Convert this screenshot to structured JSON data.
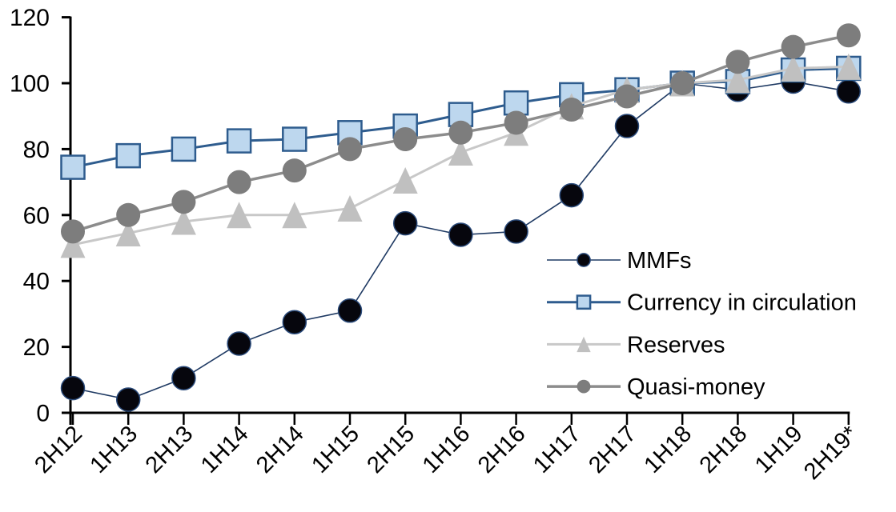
{
  "chart_data": {
    "type": "line",
    "title": "",
    "xlabel": "",
    "ylabel": "",
    "categories": [
      "2H12",
      "1H13",
      "2H13",
      "1H14",
      "2H14",
      "1H15",
      "2H15",
      "1H16",
      "2H16",
      "1H17",
      "2H17",
      "1H18",
      "2H18",
      "1H19",
      "2H19*"
    ],
    "series": [
      {
        "name": "MMFs",
        "values": [
          7.5,
          4,
          10.5,
          21,
          27.5,
          31,
          57.5,
          54,
          55,
          66,
          87,
          100,
          98,
          100.5,
          97.5
        ],
        "marker": "circle",
        "line_color": "#1f3a63",
        "line_width": 1.6,
        "marker_fill": "#06060d",
        "marker_stroke": "#2a4a7a",
        "marker_stroke_width": 1.5,
        "marker_size": 29
      },
      {
        "name": "Currency in circulation",
        "values": [
          74.5,
          78,
          80,
          82.5,
          83,
          85,
          87,
          90.5,
          94,
          96.5,
          98,
          100,
          100.5,
          104,
          104.5
        ],
        "marker": "square",
        "line_color": "#2e5c8e",
        "line_width": 3,
        "marker_fill": "#bdd7ee",
        "marker_stroke": "#2e5c8e",
        "marker_stroke_width": 2.5,
        "marker_size": 29
      },
      {
        "name": "Reserves",
        "values": [
          51,
          54.5,
          58,
          60,
          60,
          62,
          70.5,
          79,
          85,
          93,
          98,
          100,
          101,
          104.5,
          105
        ],
        "marker": "triangle",
        "line_color": "#c8c8c8",
        "line_width": 3,
        "marker_fill": "#c0c0c0",
        "marker_stroke": "none",
        "marker_stroke_width": 0,
        "marker_size": 31
      },
      {
        "name": "Quasi-money",
        "values": [
          55,
          60,
          64,
          70,
          73.5,
          80,
          83,
          85,
          88,
          92,
          96,
          100,
          106.5,
          111,
          114.5
        ],
        "marker": "circle",
        "line_color": "#8c8c8c",
        "line_width": 3.5,
        "marker_fill": "#7d7d7d",
        "marker_stroke": "none",
        "marker_stroke_width": 0,
        "marker_size": 30
      }
    ],
    "yticks": [
      0,
      20,
      40,
      60,
      80,
      100,
      120
    ],
    "ylim": [
      0,
      120
    ],
    "grid": false,
    "legend_position": "inside-right",
    "legend_labels": [
      "MMFs",
      "Currency in circulation",
      "Reserves",
      "Quasi-money"
    ],
    "axis_color": "#000000",
    "background": "#ffffff"
  }
}
